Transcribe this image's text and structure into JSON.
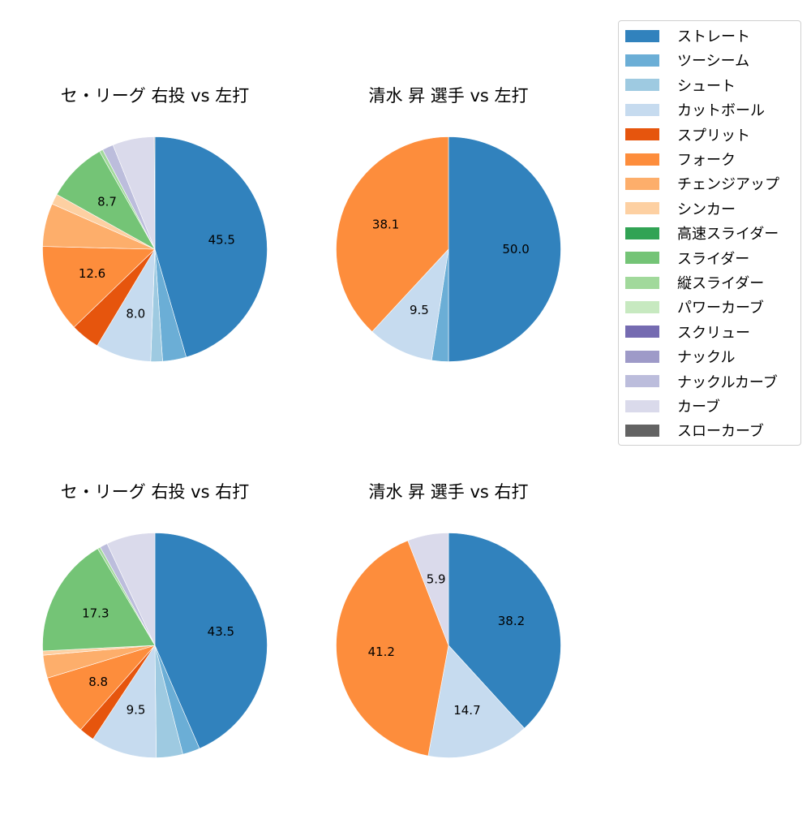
{
  "chart_data": [
    {
      "type": "pie",
      "title": "セ・リーグ 右投 vs 左打",
      "startangle": 90,
      "direction": "clockwise",
      "slices": [
        {
          "label": "ストレート",
          "value": 45.5,
          "shown": "45.5"
        },
        {
          "label": "ツーシーム",
          "value": 3.4
        },
        {
          "label": "シュート",
          "value": 1.7
        },
        {
          "label": "カットボール",
          "value": 8.0,
          "shown": "8.0"
        },
        {
          "label": "スプリット",
          "value": 4.2
        },
        {
          "label": "フォーク",
          "value": 12.6,
          "shown": "12.6"
        },
        {
          "label": "チェンジアップ",
          "value": 6.2
        },
        {
          "label": "シンカー",
          "value": 1.5
        },
        {
          "label": "スライダー",
          "value": 8.7,
          "shown": "8.7"
        },
        {
          "label": "縦スライダー",
          "value": 0.5
        },
        {
          "label": "ナックルカーブ",
          "value": 1.6
        },
        {
          "label": "カーブ",
          "value": 6.0
        },
        {
          "label": "スローカーブ",
          "value": 0.1
        }
      ]
    },
    {
      "type": "pie",
      "title": "清水 昇 選手 vs 左打",
      "startangle": 90,
      "direction": "clockwise",
      "slices": [
        {
          "label": "ストレート",
          "value": 50.0,
          "shown": "50.0"
        },
        {
          "label": "ツーシーム",
          "value": 2.4
        },
        {
          "label": "カットボール",
          "value": 9.5,
          "shown": "9.5"
        },
        {
          "label": "フォーク",
          "value": 38.1,
          "shown": "38.1"
        }
      ]
    },
    {
      "type": "pie",
      "title": "セ・リーグ 右投 vs 右打",
      "startangle": 90,
      "direction": "clockwise",
      "slices": [
        {
          "label": "ストレート",
          "value": 43.5,
          "shown": "43.5"
        },
        {
          "label": "ツーシーム",
          "value": 2.5
        },
        {
          "label": "シュート",
          "value": 3.8
        },
        {
          "label": "カットボール",
          "value": 9.5,
          "shown": "9.5"
        },
        {
          "label": "スプリット",
          "value": 2.2
        },
        {
          "label": "フォーク",
          "value": 8.8,
          "shown": "8.8"
        },
        {
          "label": "チェンジアップ",
          "value": 3.3
        },
        {
          "label": "シンカー",
          "value": 0.6
        },
        {
          "label": "スライダー",
          "value": 17.3,
          "shown": "17.3"
        },
        {
          "label": "縦スライダー",
          "value": 0.4
        },
        {
          "label": "ナックルカーブ",
          "value": 1.1
        },
        {
          "label": "カーブ",
          "value": 7.0
        }
      ]
    },
    {
      "type": "pie",
      "title": "清水 昇 選手 vs 右打",
      "startangle": 90,
      "direction": "clockwise",
      "slices": [
        {
          "label": "ストレート",
          "value": 38.2,
          "shown": "38.2"
        },
        {
          "label": "カットボール",
          "value": 14.7,
          "shown": "14.7"
        },
        {
          "label": "フォーク",
          "value": 41.2,
          "shown": "41.2"
        },
        {
          "label": "カーブ",
          "value": 5.9,
          "shown": "5.9"
        }
      ]
    }
  ],
  "legend": {
    "position": "upper right",
    "items": [
      {
        "label": "ストレート",
        "color": "#3182bd"
      },
      {
        "label": "ツーシーム",
        "color": "#6baed6"
      },
      {
        "label": "シュート",
        "color": "#9ecae1"
      },
      {
        "label": "カットボール",
        "color": "#c6dbef"
      },
      {
        "label": "スプリット",
        "color": "#e6550d"
      },
      {
        "label": "フォーク",
        "color": "#fd8d3c"
      },
      {
        "label": "チェンジアップ",
        "color": "#fdae6b"
      },
      {
        "label": "シンカー",
        "color": "#fdd0a2"
      },
      {
        "label": "高速スライダー",
        "color": "#31a354"
      },
      {
        "label": "スライダー",
        "color": "#74c476"
      },
      {
        "label": "縦スライダー",
        "color": "#a1d99b"
      },
      {
        "label": "パワーカーブ",
        "color": "#c7e9c0"
      },
      {
        "label": "スクリュー",
        "color": "#756bb1"
      },
      {
        "label": "ナックル",
        "color": "#9e9ac8"
      },
      {
        "label": "ナックルカーブ",
        "color": "#bcbddc"
      },
      {
        "label": "カーブ",
        "color": "#dadaeb"
      },
      {
        "label": "スローカーブ",
        "color": "#636363"
      }
    ]
  }
}
